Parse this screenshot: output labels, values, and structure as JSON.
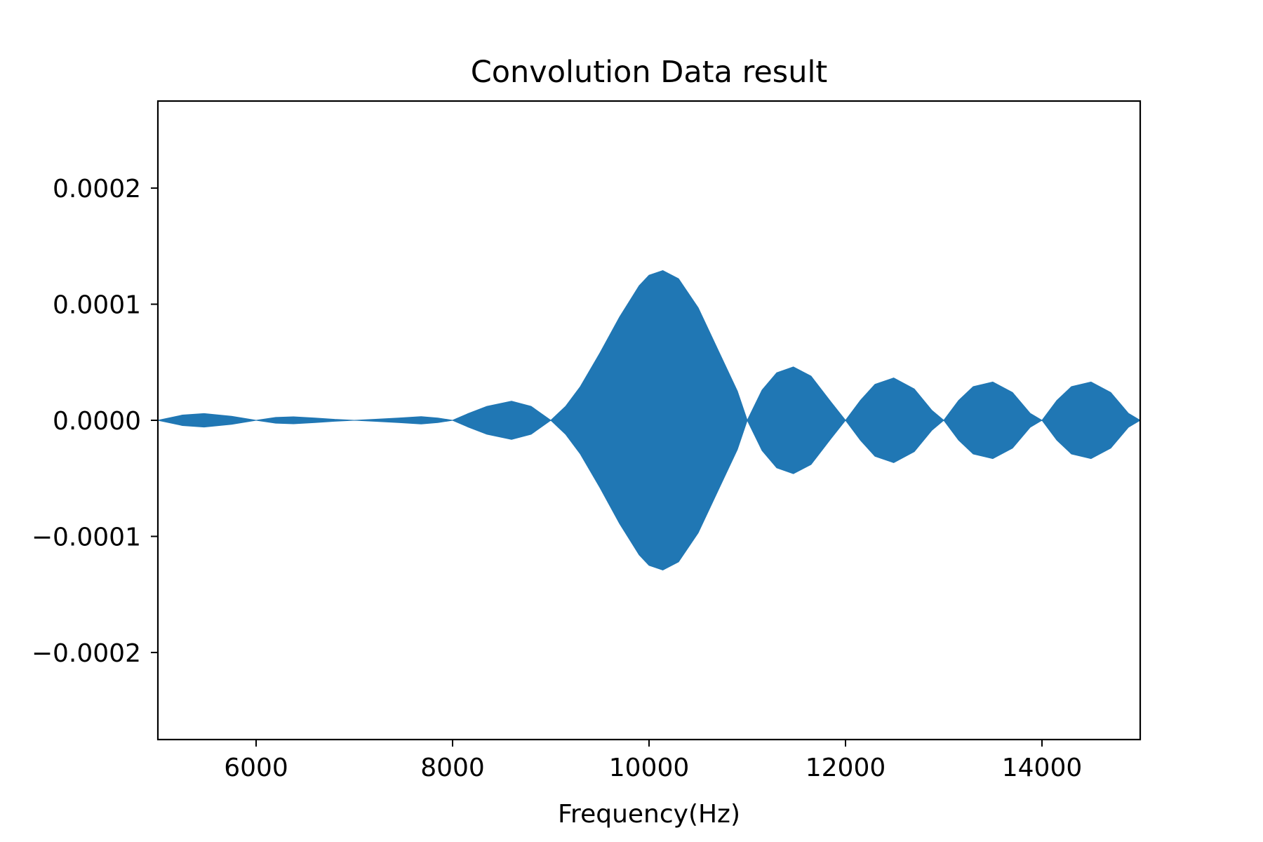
{
  "chart_data": {
    "type": "area",
    "title": "Convolution Data result",
    "xlabel": "Frequency(Hz)",
    "ylabel": "",
    "xlim": [
      5000,
      15000
    ],
    "ylim": [
      -0.000275,
      0.000275
    ],
    "grid": false,
    "x_ticks": [
      6000,
      8000,
      10000,
      12000,
      14000
    ],
    "x_tick_labels": [
      "6000",
      "8000",
      "10000",
      "12000",
      "14000"
    ],
    "y_ticks": [
      0.0002,
      0.0001,
      0.0,
      -0.0001,
      -0.0002
    ],
    "y_tick_labels": [
      "0.0002",
      "0.0001",
      "0.0000",
      "−0.0001",
      "−0.0002"
    ],
    "fill_color": "#2077b4",
    "series": [
      {
        "name": "",
        "shape": "symmetric envelope filled between +y and -y",
        "envelope_x": [
          5000,
          5250,
          5470,
          5750,
          6000,
          6200,
          6380,
          6600,
          6800,
          7000,
          7200,
          7450,
          7680,
          7850,
          8000,
          8150,
          8350,
          8600,
          8800,
          9000,
          9150,
          9300,
          9500,
          9700,
          9900,
          10000,
          10140,
          10300,
          10500,
          10700,
          10900,
          11000,
          11150,
          11300,
          11470,
          11650,
          11850,
          12000,
          12150,
          12300,
          12490,
          12700,
          12880,
          13000,
          13150,
          13300,
          13500,
          13700,
          13880,
          14000,
          14150,
          14300,
          14500,
          14700,
          14880,
          15000
        ],
        "envelope_y": [
          0.0,
          4.5e-06,
          5.8e-06,
          3.5e-06,
          0.0,
          2.5e-06,
          3e-06,
          2e-06,
          8e-07,
          0.0,
          8e-07,
          2e-06,
          3.2e-06,
          2e-06,
          0.0,
          5.5e-06,
          1.2e-05,
          1.65e-05,
          1.2e-05,
          0.0,
          1.2e-05,
          2.9e-05,
          5.8e-05,
          8.9e-05,
          0.000116,
          0.000125,
          0.000129,
          0.000122,
          9.7e-05,
          6.1e-05,
          2.5e-05,
          0.0,
          2.6e-05,
          4.1e-05,
          4.6e-05,
          3.8e-05,
          1.6e-05,
          0.0,
          1.7e-05,
          3.1e-05,
          3.65e-05,
          2.7e-05,
          8.5e-06,
          0.0,
          1.7e-05,
          2.9e-05,
          3.3e-05,
          2.4e-05,
          6e-06,
          0.0,
          1.7e-05,
          2.9e-05,
          3.3e-05,
          2.4e-05,
          6e-06,
          0.0
        ]
      }
    ]
  }
}
